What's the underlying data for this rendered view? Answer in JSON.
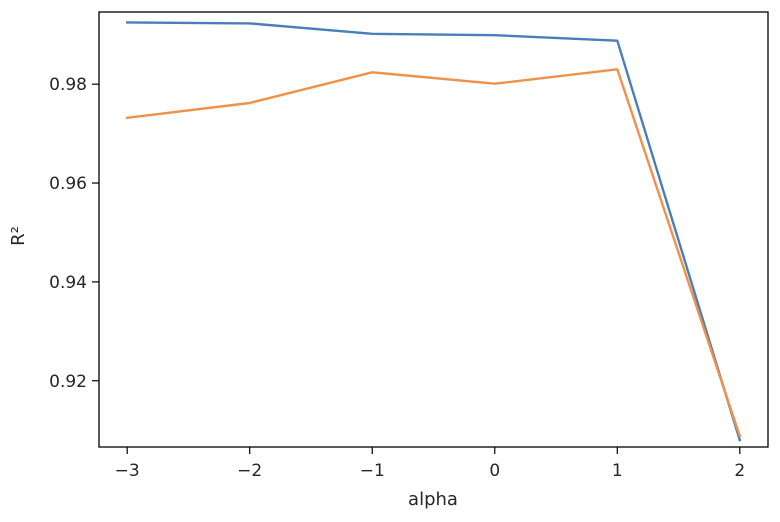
{
  "chart_data": {
    "type": "line",
    "title": "",
    "xlabel": "alpha",
    "ylabel": "R²",
    "x": [
      -3,
      -2,
      -1,
      0,
      1,
      2
    ],
    "xlim": [
      -3.23,
      2.23
    ],
    "ylim": [
      0.9066,
      0.9946
    ],
    "xticks": [
      -3,
      -2,
      -1,
      0,
      1,
      2
    ],
    "xtick_labels": [
      "−3",
      "−2",
      "−1",
      "0",
      "1",
      "2"
    ],
    "yticks": [
      0.92,
      0.94,
      0.96,
      0.98
    ],
    "ytick_labels": [
      "0.92",
      "0.94",
      "0.96",
      "0.98"
    ],
    "grid": false,
    "series": [
      {
        "color": "#4a7ebb",
        "values": [
          0.9925,
          0.9923,
          0.9902,
          0.9899,
          0.9888,
          0.908
        ]
      },
      {
        "color": "#f0914a",
        "values": [
          0.9732,
          0.9762,
          0.9824,
          0.9801,
          0.983,
          0.9088
        ]
      }
    ]
  }
}
